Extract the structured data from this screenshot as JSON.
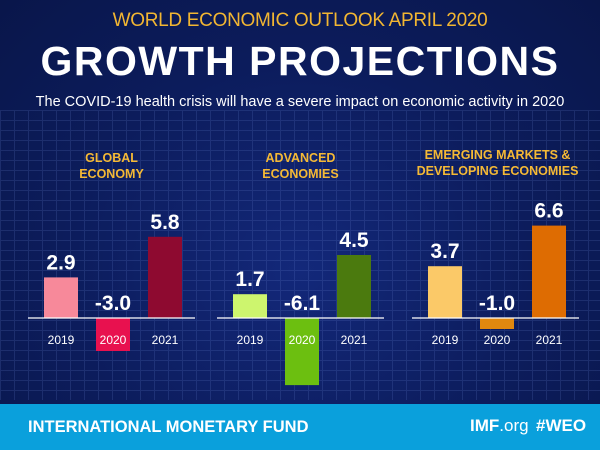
{
  "header": {
    "kicker": "WORLD ECONOMIC OUTLOOK  APRIL 2020",
    "title": "GROWTH PROJECTIONS",
    "subtitle": "The COVID-19 health crisis will have a severe impact on economic activity in 2020"
  },
  "chart_data": [
    {
      "type": "bar",
      "title": "GLOBAL ECONOMY",
      "categories": [
        "2019",
        "2020",
        "2021"
      ],
      "values": [
        2.9,
        -3.0,
        5.8
      ],
      "labels": [
        "2.9",
        "-3.0",
        "5.8"
      ],
      "colors": [
        "#f7899a",
        "#e8114f",
        "#8e0a30"
      ]
    },
    {
      "type": "bar",
      "title": "ADVANCED ECONOMIES",
      "categories": [
        "2019",
        "2020",
        "2021"
      ],
      "values": [
        1.7,
        -6.1,
        4.5
      ],
      "labels": [
        "1.7",
        "-6.1",
        "4.5"
      ],
      "colors": [
        "#cdf56e",
        "#6cbf10",
        "#4b7a0e"
      ]
    },
    {
      "type": "bar",
      "title": "EMERGING MARKETS & DEVELOPING ECONOMIES",
      "categories": [
        "2019",
        "2020",
        "2021"
      ],
      "values": [
        3.7,
        -1.0,
        6.6
      ],
      "labels": [
        "3.7",
        "-1.0",
        "6.6"
      ],
      "colors": [
        "#fbc968",
        "#e0880f",
        "#de6c02"
      ]
    }
  ],
  "group_titles": [
    [
      "GLOBAL",
      "ECONOMY"
    ],
    [
      "ADVANCED",
      "ECONOMIES"
    ],
    [
      "EMERGING MARKETS &",
      "DEVELOPING ECONOMIES"
    ]
  ],
  "footer": {
    "org": "INTERNATIONAL MONETARY FUND",
    "site_main": "IMF",
    "site_tld": ".org",
    "hashtag": "#WEO"
  }
}
